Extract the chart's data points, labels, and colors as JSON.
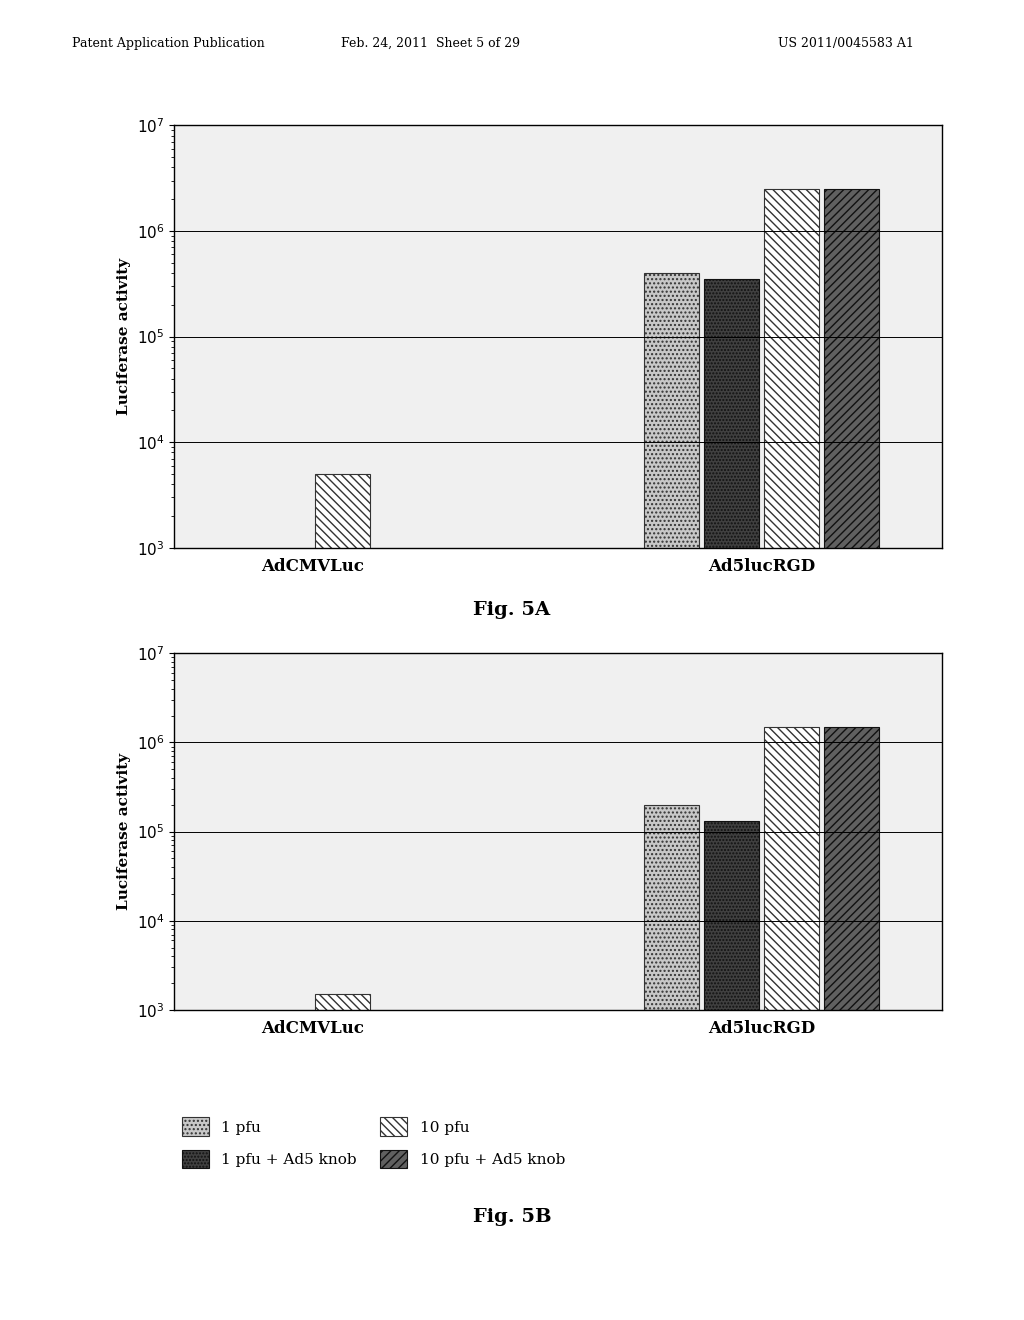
{
  "fig5A": {
    "ylabel": "Luciferase activity",
    "groups": [
      "AdCMVLuc",
      "Ad5lucRGD"
    ],
    "series": [
      "1 pfu",
      "1 pfu + Ad5 knob",
      "10 pfu",
      "10 pfu + Ad5 knob"
    ],
    "values": {
      "AdCMVLuc": [
        800,
        800,
        5000,
        500
      ],
      "Ad5lucRGD": [
        400000,
        350000,
        2500000,
        2500000
      ]
    },
    "ylim": [
      1000.0,
      10000000.0
    ],
    "yticks": [
      1000.0,
      10000.0,
      100000.0,
      1000000.0,
      10000000.0
    ]
  },
  "fig5B": {
    "ylabel": "Luciferase activity",
    "groups": [
      "AdCMVLuc",
      "Ad5lucRGD"
    ],
    "series": [
      "1 pfu",
      "1 pfu + Ad5 knob",
      "10 pfu",
      "10 pfu + Ad5 knob"
    ],
    "values": {
      "AdCMVLuc": [
        300,
        250,
        1500,
        250
      ],
      "Ad5lucRGD": [
        200000,
        130000,
        1500000,
        1500000
      ]
    },
    "ylim": [
      1000.0,
      10000000.0
    ],
    "yticks": [
      1000.0,
      10000.0,
      100000.0,
      1000000.0,
      10000000.0
    ],
    "legend_entries": [
      "1 pfu",
      "1 pfu + Ad5 knob",
      "10 pfu",
      "10 pfu + Ad5 knob"
    ]
  },
  "header": {
    "left": "Patent Application Publication",
    "center": "Feb. 24, 2011  Sheet 5 of 29",
    "right": "US 2011/0045583 A1"
  },
  "fig5A_label": "Fig. 5A",
  "fig5B_label": "Fig. 5B",
  "background_color": "#ffffff"
}
